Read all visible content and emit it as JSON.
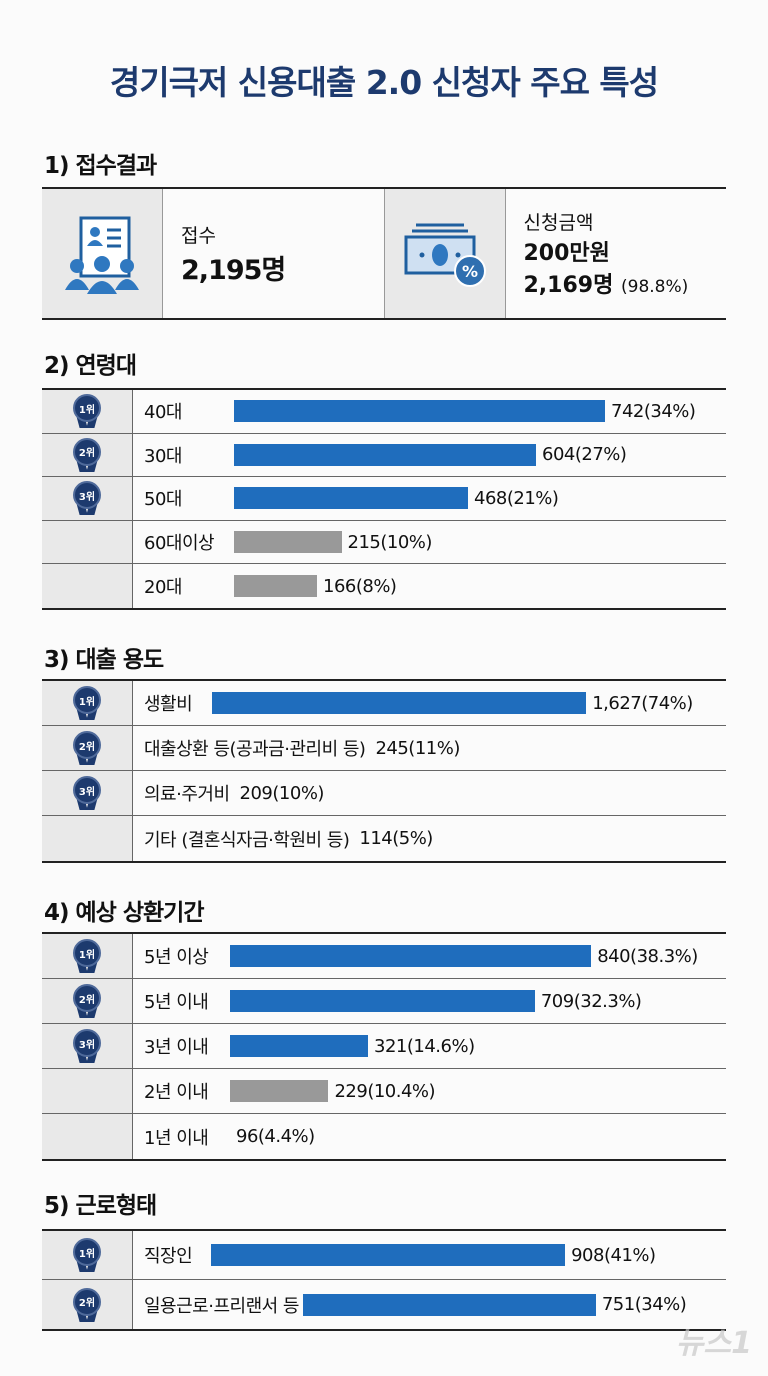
{
  "title": "경기극저 신용대출 2.0 신청자 주요 특성",
  "colors": {
    "accent": "#1f6dbd",
    "secondary": "#999999",
    "navy": "#1d3a6e"
  },
  "section1": {
    "heading": "1) 접수결과",
    "receipt_label": "접수",
    "receipt_value": "2,195명",
    "apply_label": "신청금액",
    "apply_amount": "200만원",
    "apply_count": "2,169명",
    "apply_pct": "(98.8%)",
    "icons": [
      "applicants-document-icon",
      "money-percent-icon"
    ]
  },
  "watermark": "뉴스1",
  "chart_data": [
    {
      "type": "bar",
      "title": "2) 연령대",
      "rows": [
        {
          "rank": "1위",
          "label": "40대",
          "value": 742,
          "pct": 34,
          "text": "742(34%)",
          "show_bar": true
        },
        {
          "rank": "2위",
          "label": "30대",
          "value": 604,
          "pct": 27,
          "text": "604(27%)",
          "show_bar": true
        },
        {
          "rank": "3위",
          "label": "50대",
          "value": 468,
          "pct": 21,
          "text": "468(21%)",
          "show_bar": true
        },
        {
          "rank": "",
          "label": "60대이상",
          "value": 215,
          "pct": 10,
          "text": "215(10%)",
          "show_bar": true
        },
        {
          "rank": "",
          "label": "20대",
          "value": 166,
          "pct": 8,
          "text": "166(8%)",
          "show_bar": true
        }
      ]
    },
    {
      "type": "bar",
      "title": "3) 대출 용도",
      "rows": [
        {
          "rank": "1위",
          "label": "생활비",
          "value": 1627,
          "pct": 74,
          "text": "1,627(74%)",
          "show_bar": true
        },
        {
          "rank": "2위",
          "label": "대출상환 등(공과금·관리비 등)",
          "value": 245,
          "pct": 11,
          "text": "245(11%)",
          "show_bar": false
        },
        {
          "rank": "3위",
          "label": "의료·주거비",
          "value": 209,
          "pct": 10,
          "text": "209(10%)",
          "show_bar": false
        },
        {
          "rank": "",
          "label": "기타 (결혼식자금·학원비 등)",
          "value": 114,
          "pct": 5,
          "text": "114(5%)",
          "show_bar": false
        }
      ]
    },
    {
      "type": "bar",
      "title": "4) 예상 상환기간",
      "rows": [
        {
          "rank": "1위",
          "label": "5년 이상",
          "value": 840,
          "pct": 38.3,
          "text": "840(38.3%)",
          "show_bar": true
        },
        {
          "rank": "2위",
          "label": "5년 이내",
          "value": 709,
          "pct": 32.3,
          "text": "709(32.3%)",
          "show_bar": true
        },
        {
          "rank": "3위",
          "label": "3년 이내",
          "value": 321,
          "pct": 14.6,
          "text": "321(14.6%)",
          "show_bar": true
        },
        {
          "rank": "",
          "label": "2년 이내",
          "value": 229,
          "pct": 10.4,
          "text": "229(10.4%)",
          "show_bar": true
        },
        {
          "rank": "",
          "label": "1년 이내",
          "value": 96,
          "pct": 4.4,
          "text": "96(4.4%)",
          "show_bar": false
        }
      ]
    },
    {
      "type": "bar",
      "title": "5) 근로형태",
      "rows": [
        {
          "rank": "1위",
          "label": "직장인",
          "value": 908,
          "pct": 41,
          "text": "908(41%)",
          "show_bar": true
        },
        {
          "rank": "2위",
          "label": "일용근로·프리랜서 등",
          "value": 751,
          "pct": 34,
          "text": "751(34%)",
          "show_bar": true
        }
      ]
    }
  ]
}
